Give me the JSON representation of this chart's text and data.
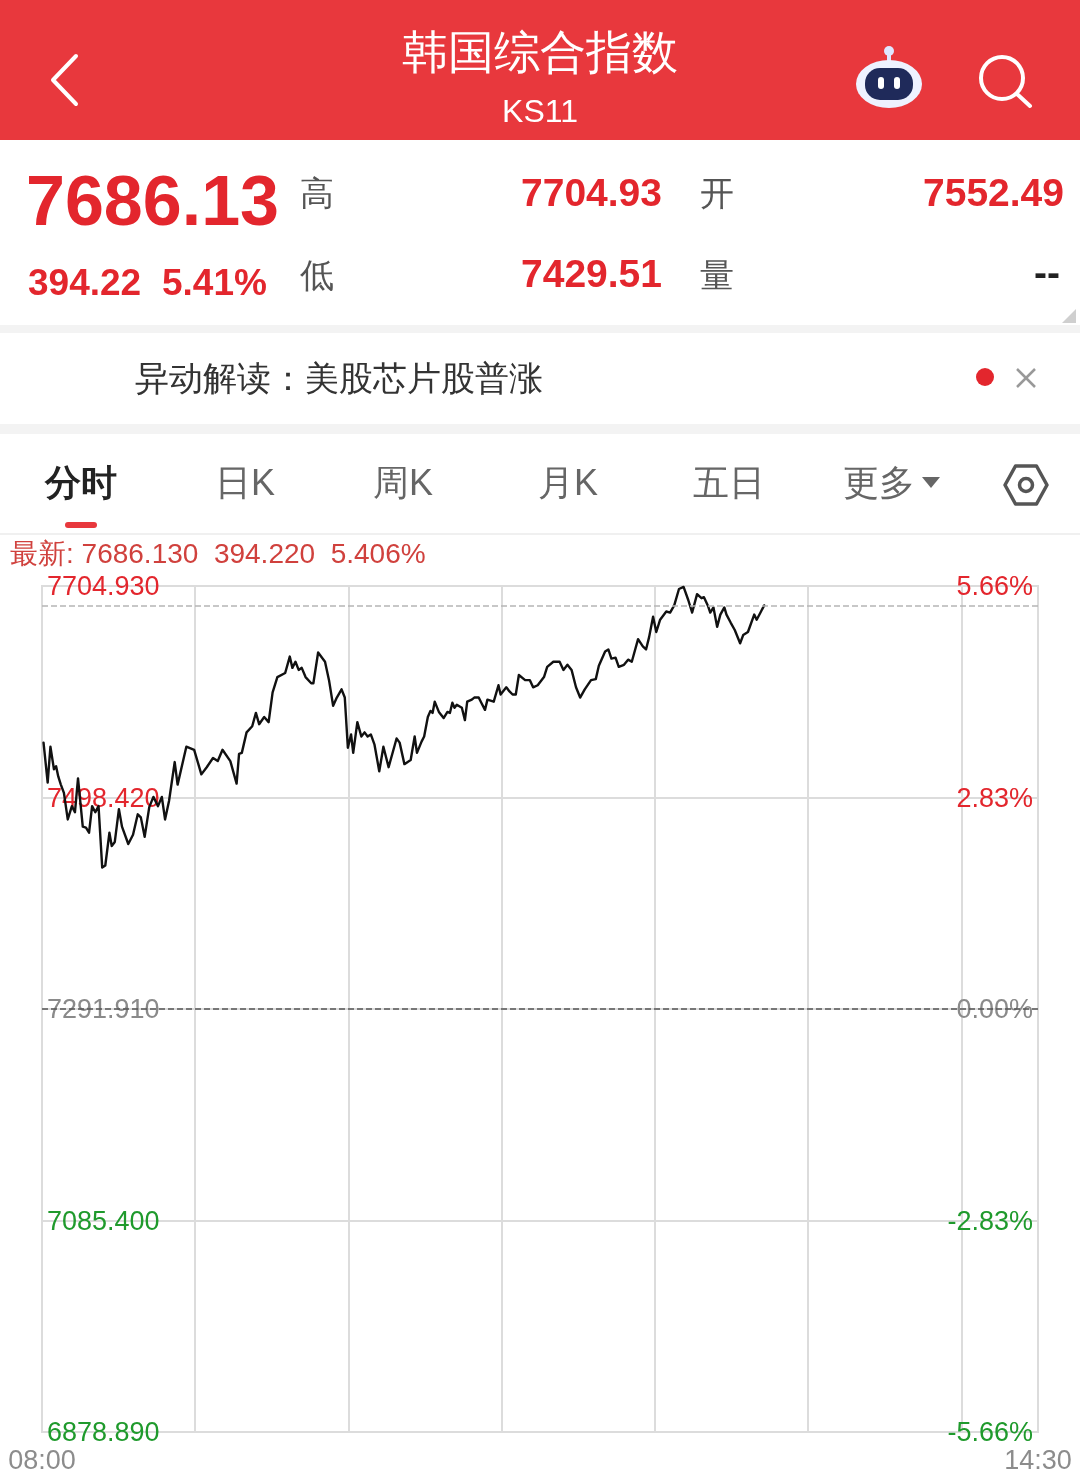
{
  "chart_data": {
    "type": "line",
    "title": "韩国综合指数",
    "subtitle": "KS11",
    "annotations": [
      "7686.13",
      "394.22",
      "5.41%",
      "高",
      "7704.93",
      "低",
      "7429.51",
      "开",
      "7552.49",
      "量",
      "--",
      "异动解读：美股芯片股普涨",
      "分时",
      "日K",
      "周K",
      "月K",
      "五日",
      "更多",
      "最新: 7686.130  394.220  5.406%"
    ],
    "x": [
      8.01,
      8.037,
      8.055,
      8.078,
      8.092,
      8.106,
      8.123,
      8.143,
      8.168,
      8.195,
      8.215,
      8.235,
      8.266,
      8.287,
      8.307,
      8.327,
      8.348,
      8.369,
      8.393,
      8.413,
      8.44,
      8.455,
      8.475,
      8.502,
      8.522,
      8.563,
      8.594,
      8.625,
      8.645,
      8.67,
      8.7,
      8.727,
      8.757,
      8.782,
      8.803,
      8.829,
      8.866,
      8.885,
      8.942,
      8.993,
      9.04,
      9.075,
      9.116,
      9.147,
      9.178,
      9.229,
      9.27,
      9.286,
      9.304,
      9.335,
      9.372,
      9.396,
      9.417,
      9.45,
      9.479,
      9.505,
      9.536,
      9.587,
      9.617,
      9.634,
      9.654,
      9.675,
      9.695,
      9.72,
      9.757,
      9.771,
      9.802,
      9.847,
      9.873,
      9.9,
      9.924,
      9.955,
      9.976,
      9.996,
      10.017,
      10.031,
      10.058,
      10.084,
      10.105,
      10.125,
      10.146,
      10.17,
      10.201,
      10.228,
      10.262,
      10.314,
      10.334,
      10.365,
      10.406,
      10.432,
      10.447,
      10.477,
      10.494,
      10.518,
      10.535,
      10.549,
      10.563,
      10.59,
      10.621,
      10.646,
      10.662,
      10.678,
      10.692,
      10.707,
      10.74,
      10.76,
      10.775,
      10.805,
      10.821,
      10.85,
      10.867,
      10.891,
      10.907,
      10.948,
      10.979,
      10.993,
      11.03,
      11.051,
      11.071,
      11.092,
      11.112,
      11.153,
      11.184,
      11.205,
      11.235,
      11.276,
      11.297,
      11.337,
      11.378,
      11.403,
      11.429,
      11.456,
      11.485,
      11.512,
      11.542,
      11.583,
      11.614,
      11.634,
      11.675,
      11.696,
      11.716,
      11.743,
      11.764,
      11.798,
      11.825,
      11.849,
      11.89,
      11.921,
      11.942,
      11.962,
      11.988,
      12.009,
      12.034,
      12.074,
      12.099,
      12.126,
      12.157,
      12.187,
      12.218,
      12.243,
      12.275,
      12.304,
      12.32,
      12.345,
      12.361,
      12.382,
      12.406,
      12.427,
      12.453,
      12.467,
      12.495,
      12.521,
      12.556,
      12.576,
      12.607,
      12.648,
      12.664,
      12.689,
      12.713
    ],
    "values": [
      7552,
      7513,
      7548,
      7526,
      7529,
      7519,
      7511,
      7503,
      7477,
      7490,
      7484,
      7517,
      7470,
      7469,
      7464,
      7490,
      7484,
      7490,
      7430,
      7432,
      7464,
      7451,
      7455,
      7487,
      7470,
      7453,
      7462,
      7482,
      7479,
      7460,
      7489,
      7499,
      7490,
      7499,
      7477,
      7495,
      7533,
      7511,
      7548,
      7545,
      7521,
      7528,
      7537,
      7534,
      7545,
      7534,
      7512,
      7541,
      7542,
      7562,
      7568,
      7581,
      7570,
      7577,
      7572,
      7601,
      7616,
      7620,
      7636,
      7625,
      7631,
      7623,
      7625,
      7616,
      7610,
      7610,
      7640,
      7631,
      7613,
      7588,
      7596,
      7604,
      7596,
      7547,
      7560,
      7542,
      7572,
      7558,
      7562,
      7558,
      7560,
      7550,
      7524,
      7548,
      7528,
      7556,
      7552,
      7531,
      7535,
      7558,
      7542,
      7553,
      7558,
      7577,
      7583,
      7581,
      7592,
      7582,
      7576,
      7582,
      7581,
      7591,
      7586,
      7589,
      7586,
      7574,
      7592,
      7594,
      7596,
      7596,
      7591,
      7584,
      7594,
      7592,
      7608,
      7599,
      7606,
      7602,
      7599,
      7599,
      7618,
      7613,
      7613,
      7606,
      7608,
      7616,
      7626,
      7631,
      7631,
      7623,
      7628,
      7623,
      7606,
      7596,
      7604,
      7613,
      7614,
      7627,
      7641,
      7643,
      7634,
      7635,
      7626,
      7628,
      7633,
      7631,
      7653,
      7646,
      7643,
      7655,
      7675,
      7660,
      7672,
      7680,
      7679,
      7686,
      7702,
      7704,
      7691,
      7679,
      7697,
      7693,
      7694,
      7686,
      7679,
      7684,
      7665,
      7677,
      7684,
      7677,
      7669,
      7662,
      7649,
      7657,
      7660,
      7677,
      7672,
      7679,
      7686
    ],
    "color": "#111111",
    "marker": "none",
    "line_style": "solid",
    "xlim": [
      8,
      14.5
    ],
    "xticks": [
      {
        "value": 8,
        "label": "08:00"
      },
      {
        "value": 9,
        "label": null
      },
      {
        "value": 10,
        "label": null
      },
      {
        "value": 11,
        "label": null
      },
      {
        "value": 12,
        "label": null
      },
      {
        "value": 13,
        "label": null
      },
      {
        "value": 14,
        "label": null
      },
      {
        "value": 14.5,
        "label": "14:30"
      }
    ],
    "ylim": [
      6878.89,
      7704.93
    ],
    "yticks": [
      {
        "value": 6878.89,
        "label": "6878.890"
      },
      {
        "value": 7085.4,
        "label": "7085.400"
      },
      {
        "value": 7291.91,
        "label": "7291.910"
      },
      {
        "value": 7498.42,
        "label": "7498.420"
      },
      {
        "value": 7704.93,
        "label": "7704.930"
      }
    ],
    "y2lim": [
      -5.66,
      5.66
    ],
    "y2ticks": [
      {
        "value": -5.66,
        "label": "-5.66%"
      },
      {
        "value": -2.83,
        "label": "-2.83%"
      },
      {
        "value": 0,
        "label": "0.00%"
      },
      {
        "value": 2.83,
        "label": "2.83%"
      },
      {
        "value": 5.66,
        "label": "5.66%"
      }
    ],
    "ref_lines": [
      {
        "axis": "y",
        "value": 7686.13,
        "color": "#b5b5b5",
        "line_style": "dashed"
      },
      {
        "axis": "y",
        "value": 7291.91,
        "color": "#555555",
        "line_style": "dashed"
      }
    ],
    "grid": true
  }
}
